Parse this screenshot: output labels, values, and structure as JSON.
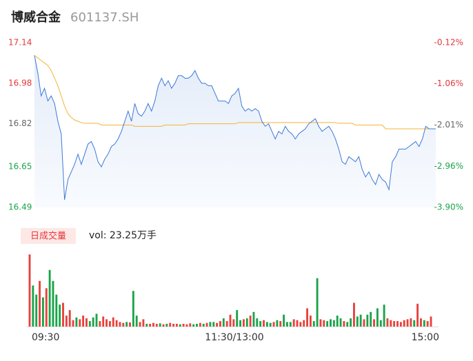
{
  "header": {
    "name": "博威合金",
    "code": "601137.SH"
  },
  "chart_data": {
    "type": "intraday",
    "x": [
      0,
      1,
      2,
      3,
      4,
      5,
      6,
      7,
      8,
      9,
      10,
      11,
      12,
      13,
      14,
      15,
      16,
      17,
      18,
      19,
      20,
      21,
      22,
      23,
      24,
      25,
      26,
      27,
      28,
      29,
      30,
      31,
      32,
      33,
      34,
      35,
      36,
      37,
      38,
      39,
      40,
      41,
      42,
      43,
      44,
      45,
      46,
      47,
      48,
      49,
      50,
      51,
      52,
      53,
      54,
      55,
      56,
      57,
      58,
      59,
      60,
      61,
      62,
      63,
      64,
      65,
      66,
      67,
      68,
      69,
      70,
      71,
      72,
      73,
      74,
      75,
      76,
      77,
      78,
      79,
      80,
      81,
      82,
      83,
      84,
      85,
      86,
      87,
      88,
      89,
      90,
      91,
      92,
      93,
      94,
      95,
      96,
      97,
      98,
      99,
      100,
      101,
      102,
      103,
      104,
      105,
      106,
      107,
      108,
      109,
      110,
      111,
      112,
      113,
      114,
      115,
      116,
      117,
      118,
      119,
      120
    ],
    "xlim": [
      0,
      120
    ],
    "xticks": [
      {
        "value": 0,
        "label": "09:30"
      },
      {
        "value": 60,
        "label": "11:30/13:00"
      },
      {
        "value": 120,
        "label": "15:00"
      }
    ],
    "series": [
      {
        "name": "price",
        "color": "#3c78d8",
        "values": [
          17.09,
          17.02,
          16.93,
          16.96,
          16.91,
          16.93,
          16.9,
          16.83,
          16.78,
          16.52,
          16.6,
          16.63,
          16.66,
          16.7,
          16.66,
          16.7,
          16.74,
          16.75,
          16.72,
          16.67,
          16.65,
          16.68,
          16.7,
          16.73,
          16.74,
          16.76,
          16.79,
          16.83,
          16.87,
          16.83,
          16.9,
          16.86,
          16.85,
          16.87,
          16.9,
          16.87,
          16.91,
          16.97,
          17.0,
          16.97,
          16.99,
          16.96,
          16.98,
          17.01,
          17.01,
          17.0,
          17.0,
          17.01,
          17.03,
          17.0,
          16.98,
          16.98,
          16.97,
          16.97,
          16.94,
          16.91,
          16.91,
          16.91,
          16.9,
          16.93,
          16.94,
          16.96,
          16.89,
          16.87,
          16.88,
          16.87,
          16.88,
          16.87,
          16.83,
          16.81,
          16.82,
          16.79,
          16.76,
          16.79,
          16.78,
          16.81,
          16.79,
          16.78,
          16.76,
          16.78,
          16.79,
          16.8,
          16.82,
          16.83,
          16.84,
          16.81,
          16.79,
          16.8,
          16.81,
          16.79,
          16.76,
          16.72,
          16.67,
          16.66,
          16.69,
          16.68,
          16.67,
          16.69,
          16.64,
          16.61,
          16.63,
          16.6,
          16.58,
          16.62,
          16.6,
          16.59,
          16.56,
          16.67,
          16.69,
          16.72,
          16.72,
          16.72,
          16.73,
          16.74,
          16.75,
          16.73,
          16.76,
          16.81,
          16.8,
          16.8,
          16.8
        ]
      },
      {
        "name": "average",
        "color": "#f5b335",
        "values": [
          17.09,
          17.08,
          17.07,
          17.06,
          17.05,
          17.03,
          17.0,
          16.97,
          16.93,
          16.89,
          16.86,
          16.845,
          16.835,
          16.83,
          16.825,
          16.822,
          16.822,
          16.822,
          16.822,
          16.822,
          16.815,
          16.815,
          16.815,
          16.815,
          16.815,
          16.815,
          16.815,
          16.815,
          16.815,
          16.815,
          16.81,
          16.81,
          16.81,
          16.81,
          16.81,
          16.81,
          16.81,
          16.81,
          16.81,
          16.815,
          16.815,
          16.815,
          16.815,
          16.815,
          16.815,
          16.815,
          16.82,
          16.82,
          16.82,
          16.82,
          16.82,
          16.82,
          16.82,
          16.82,
          16.82,
          16.82,
          16.82,
          16.82,
          16.82,
          16.82,
          16.82,
          16.825,
          16.825,
          16.825,
          16.825,
          16.825,
          16.825,
          16.825,
          16.825,
          16.825,
          16.825,
          16.825,
          16.825,
          16.825,
          16.825,
          16.825,
          16.825,
          16.825,
          16.825,
          16.825,
          16.825,
          16.825,
          16.825,
          16.825,
          16.825,
          16.825,
          16.825,
          16.825,
          16.825,
          16.825,
          16.825,
          16.822,
          16.822,
          16.822,
          16.822,
          16.822,
          16.815,
          16.815,
          16.815,
          16.815,
          16.815,
          16.815,
          16.815,
          16.815,
          16.815,
          16.8,
          16.8,
          16.8,
          16.8,
          16.8,
          16.8,
          16.8,
          16.8,
          16.8,
          16.8,
          16.8,
          16.8,
          16.8,
          16.8,
          16.8,
          16.8
        ]
      }
    ],
    "ylim": [
      16.49,
      17.14
    ],
    "yticks": [
      17.14,
      16.98,
      16.82,
      16.65,
      16.49
    ],
    "ytick_colors": [
      "#e5383b",
      "#e5383b",
      "#666666",
      "#1aa34a",
      "#1aa34a"
    ],
    "y2lim": [
      -3.9,
      -0.12
    ],
    "y2ticks": [
      {
        "value": -0.12,
        "label": "-0.12%"
      },
      {
        "value": -1.06,
        "label": "-1.06%"
      },
      {
        "value": -2.01,
        "label": "-2.01%"
      },
      {
        "value": -2.96,
        "label": "-2.96%"
      },
      {
        "value": -3.9,
        "label": "-3.90%"
      }
    ],
    "volume": {
      "legend": "日成交量",
      "summary": "vol: 23.25万手",
      "up_color": "#e8413b",
      "down_color": "#1aa34a",
      "ylim": [
        0,
        8000
      ],
      "values": [
        7900,
        4500,
        3500,
        5000,
        3200,
        4200,
        6200,
        5000,
        3500,
        2400,
        2600,
        1200,
        1800,
        700,
        1000,
        800,
        1200,
        900,
        600,
        1000,
        1400,
        600,
        1100,
        800,
        600,
        1000,
        700,
        500,
        400,
        500,
        450,
        3900,
        1200,
        500,
        800,
        300,
        300,
        400,
        300,
        350,
        250,
        300,
        400,
        300,
        300,
        250,
        300,
        250,
        350,
        250,
        300,
        400,
        300,
        400,
        500,
        500,
        400,
        600,
        900,
        600,
        1300,
        800,
        1800,
        700,
        800,
        900,
        1200,
        1600,
        900,
        600,
        700,
        500,
        400,
        500,
        700,
        600,
        1300,
        500,
        500,
        800,
        700,
        500,
        700,
        2000,
        1200,
        600,
        5300,
        800,
        700,
        600,
        800,
        700,
        1200,
        900,
        600,
        500,
        900,
        2600,
        1100,
        1300,
        800,
        1300,
        1600,
        800,
        2000,
        700,
        2400,
        900,
        700,
        600,
        600,
        500,
        700,
        800,
        900,
        700,
        2500,
        900,
        700,
        600,
        1100
      ]
    }
  }
}
